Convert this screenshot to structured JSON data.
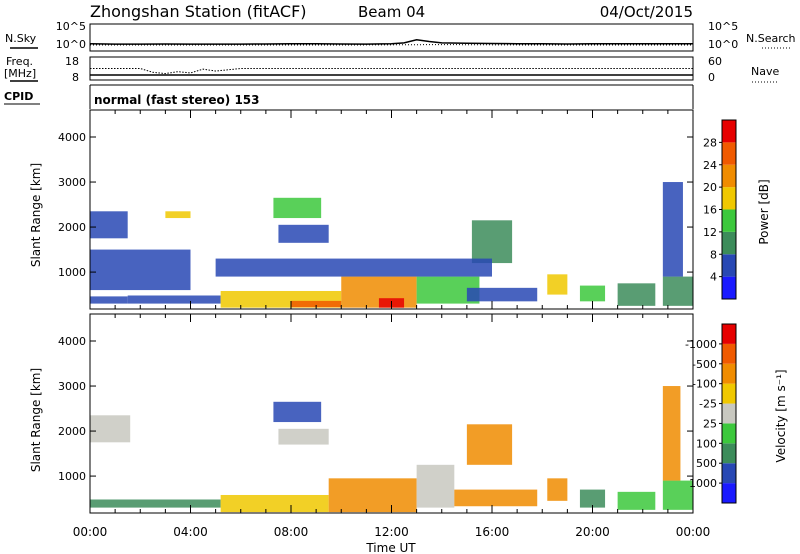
{
  "header": {
    "station": "Zhongshan Station (fitACF)",
    "beam": "Beam 04",
    "date": "04/Oct/2015"
  },
  "chart_data": [
    {
      "type": "line",
      "panel": "noise",
      "left_label": "N.Sky",
      "right_label": "N.Search",
      "left_ticks": [
        "10^5",
        "10^0"
      ],
      "right_ticks": [
        "10^5",
        "10^0"
      ],
      "series": [
        {
          "name": "N.Sky",
          "style": "solid",
          "x": [
            0,
            1,
            2,
            3,
            4,
            5,
            6,
            7,
            8,
            9,
            10,
            11,
            12,
            12.5,
            13,
            13.5,
            14,
            15,
            16,
            17,
            18,
            19,
            20,
            21,
            22,
            23,
            24
          ],
          "y": [
            1.2,
            1.1,
            1.1,
            1.15,
            1.1,
            1.1,
            1.1,
            1.15,
            1.2,
            1.2,
            1.15,
            1.1,
            1.2,
            1.4,
            2.1,
            1.7,
            1.4,
            1.3,
            1.25,
            1.2,
            1.2,
            1.15,
            1.2,
            1.2,
            1.2,
            1.2,
            1.2
          ]
        },
        {
          "name": "N.Search",
          "style": "dotted",
          "x": [
            0,
            2,
            4,
            6,
            8,
            10,
            12,
            14,
            16,
            18,
            20,
            22,
            24
          ],
          "y": [
            0.9,
            0.9,
            0.9,
            0.9,
            0.9,
            0.9,
            0.95,
            1.0,
            0.95,
            0.9,
            0.9,
            0.9,
            0.9
          ]
        }
      ]
    },
    {
      "type": "line",
      "panel": "freq-nave",
      "left_label": "Freq. [MHz]",
      "right_label": "Nave",
      "left_ticks": [
        "18",
        "8"
      ],
      "right_ticks": [
        "60",
        "0"
      ],
      "series": [
        {
          "name": "Freq.",
          "style": "solid",
          "x": [
            0,
            24
          ],
          "y": [
            9.6,
            9.6
          ]
        },
        {
          "name": "Nave",
          "style": "dotted",
          "x": [
            0,
            1,
            2,
            2.5,
            3,
            3.5,
            4,
            4.5,
            5,
            6,
            8,
            10,
            12,
            14,
            16,
            18,
            20,
            22,
            24
          ],
          "y": [
            30,
            30,
            30,
            18,
            14,
            20,
            16,
            28,
            22,
            30,
            30,
            30,
            30,
            30,
            30,
            30,
            30,
            30,
            30
          ]
        }
      ]
    },
    {
      "type": "heatmap",
      "panel": "power",
      "mode_label": "normal (fast stereo) 153",
      "ylabel": "Slant Range [km]",
      "yticks": [
        1000,
        2000,
        3000,
        4000
      ],
      "ylim": [
        180,
        4600
      ],
      "xlim": [
        0,
        24
      ],
      "colorbar": {
        "label": "Power [dB]",
        "ticks": [
          "4",
          "8",
          "12",
          "16",
          "20",
          "24",
          "28"
        ],
        "colors": [
          "#1a1aff",
          "#2848b4",
          "#3c8c5a",
          "#3cc83c",
          "#f0c800",
          "#f08c00",
          "#f05a00",
          "#e60000"
        ]
      },
      "regions": [
        {
          "t0": 0.0,
          "t1": 1.5,
          "r0": 300,
          "r1": 460,
          "bin": 1
        },
        {
          "t0": 1.5,
          "t1": 5.2,
          "r0": 300,
          "r1": 480,
          "bin": 1
        },
        {
          "t0": 5.2,
          "t1": 10.0,
          "r0": 210,
          "r1": 580,
          "bin": 4
        },
        {
          "t0": 8.0,
          "t1": 10.0,
          "r0": 220,
          "r1": 360,
          "bin": 6
        },
        {
          "t0": 10.0,
          "t1": 13.0,
          "r0": 210,
          "r1": 900,
          "bin": 5
        },
        {
          "t0": 11.5,
          "t1": 12.5,
          "r0": 210,
          "r1": 420,
          "bin": 7
        },
        {
          "t0": 13.0,
          "t1": 15.5,
          "r0": 300,
          "r1": 900,
          "bin": 3
        },
        {
          "t0": 15.0,
          "t1": 17.8,
          "r0": 350,
          "r1": 650,
          "bin": 1
        },
        {
          "t0": 0.0,
          "t1": 1.5,
          "r0": 1750,
          "r1": 2350,
          "bin": 1
        },
        {
          "t0": 0.0,
          "t1": 4.0,
          "r0": 600,
          "r1": 1500,
          "bin": 1
        },
        {
          "t0": 7.3,
          "t1": 9.2,
          "r0": 2200,
          "r1": 2650,
          "bin": 3
        },
        {
          "t0": 7.5,
          "t1": 9.5,
          "r0": 1650,
          "r1": 2050,
          "bin": 1
        },
        {
          "t0": 3.0,
          "t1": 4.0,
          "r0": 2200,
          "r1": 2350,
          "bin": 4
        },
        {
          "t0": 15.2,
          "t1": 16.8,
          "r0": 1200,
          "r1": 2150,
          "bin": 2
        },
        {
          "t0": 18.2,
          "t1": 19.0,
          "r0": 500,
          "r1": 950,
          "bin": 4
        },
        {
          "t0": 19.5,
          "t1": 20.5,
          "r0": 350,
          "r1": 700,
          "bin": 3
        },
        {
          "t0": 21.0,
          "t1": 22.5,
          "r0": 250,
          "r1": 750,
          "bin": 2
        },
        {
          "t0": 22.8,
          "t1": 24.0,
          "r0": 250,
          "r1": 900,
          "bin": 2
        },
        {
          "t0": 22.8,
          "t1": 23.6,
          "r0": 900,
          "r1": 3000,
          "bin": 1
        },
        {
          "t0": 5.0,
          "t1": 16.0,
          "r0": 900,
          "r1": 1300,
          "bin": 1
        }
      ]
    },
    {
      "type": "heatmap",
      "panel": "velocity",
      "ylabel": "Slant Range [km]",
      "xlabel": "Time UT",
      "xticks": [
        "00:00",
        "04:00",
        "08:00",
        "12:00",
        "16:00",
        "20:00",
        "00:00"
      ],
      "yticks": [
        1000,
        2000,
        3000,
        4000
      ],
      "ylim": [
        180,
        4600
      ],
      "xlim": [
        0,
        24
      ],
      "colorbar": {
        "label": "Velocity [m s⁻¹]",
        "ticks": [
          "1000",
          "500",
          "100",
          "25",
          "-25",
          "-100",
          "-500",
          "-1000"
        ],
        "colors": [
          "#1a1aff",
          "#2848b4",
          "#3c8c5a",
          "#3cc83c",
          "#c8c8c0",
          "#f0c800",
          "#f08c00",
          "#f05a00",
          "#e60000"
        ]
      },
      "regions": [
        {
          "t0": 0.0,
          "t1": 5.2,
          "r0": 300,
          "r1": 480,
          "bin": 2
        },
        {
          "t0": 5.2,
          "t1": 9.5,
          "r0": 200,
          "r1": 580,
          "bin": 5
        },
        {
          "t0": 9.5,
          "t1": 13.0,
          "r0": 200,
          "r1": 950,
          "bin": 6
        },
        {
          "t0": 13.0,
          "t1": 14.5,
          "r0": 300,
          "r1": 1250,
          "bin": 4
        },
        {
          "t0": 14.5,
          "t1": 17.8,
          "r0": 330,
          "r1": 700,
          "bin": 6
        },
        {
          "t0": 0.0,
          "t1": 1.6,
          "r0": 1750,
          "r1": 2350,
          "bin": 4
        },
        {
          "t0": 7.3,
          "t1": 9.2,
          "r0": 2200,
          "r1": 2650,
          "bin": 1
        },
        {
          "t0": 7.5,
          "t1": 9.5,
          "r0": 1700,
          "r1": 2050,
          "bin": 4
        },
        {
          "t0": 15.0,
          "t1": 16.8,
          "r0": 1250,
          "r1": 2150,
          "bin": 6
        },
        {
          "t0": 18.2,
          "t1": 19.0,
          "r0": 450,
          "r1": 950,
          "bin": 6
        },
        {
          "t0": 19.5,
          "t1": 20.5,
          "r0": 300,
          "r1": 700,
          "bin": 2
        },
        {
          "t0": 21.0,
          "t1": 22.5,
          "r0": 250,
          "r1": 650,
          "bin": 3
        },
        {
          "t0": 22.8,
          "t1": 24.0,
          "r0": 250,
          "r1": 900,
          "bin": 3
        },
        {
          "t0": 22.8,
          "t1": 23.5,
          "r0": 900,
          "r1": 3000,
          "bin": 6
        }
      ]
    }
  ],
  "labels": {
    "cpid": "CPID"
  }
}
